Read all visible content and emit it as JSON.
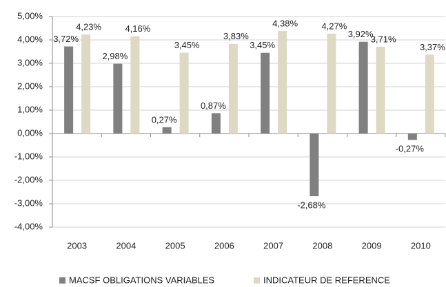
{
  "chart_data": {
    "type": "bar",
    "categories": [
      "2003",
      "2004",
      "2005",
      "2006",
      "2007",
      "2008",
      "2009",
      "2010"
    ],
    "series": [
      {
        "name": "MACSF OBLIGATIONS VARIABLES",
        "color": "#808080",
        "values": [
          3.72,
          2.98,
          0.27,
          0.87,
          3.45,
          -2.68,
          3.92,
          -0.27
        ],
        "value_labels": [
          "3,72%",
          "2,98%",
          "0,27%",
          "0,87%",
          "3,45%",
          "-2,68%",
          "3,92%",
          "-0,27%"
        ]
      },
      {
        "name": "INDICATEUR DE REFERENCE",
        "color": "#ddd9c3",
        "values": [
          4.23,
          4.16,
          3.45,
          3.83,
          4.38,
          4.27,
          3.71,
          3.37
        ],
        "value_labels": [
          "4,23%",
          "4,16%",
          "3,45%",
          "3,83%",
          "4,38%",
          "4,27%",
          "3,71%",
          "3,37%"
        ]
      }
    ],
    "ylim": [
      -4,
      5
    ],
    "yticks": [
      {
        "value": -4,
        "label": "-4,00%"
      },
      {
        "value": -3,
        "label": "-3,00%"
      },
      {
        "value": -2,
        "label": "-2,00%"
      },
      {
        "value": -1,
        "label": "-1,00%"
      },
      {
        "value": 0,
        "label": "0,00%"
      },
      {
        "value": 1,
        "label": "1,00%"
      },
      {
        "value": 2,
        "label": "2,00%"
      },
      {
        "value": 3,
        "label": "3,00%"
      },
      {
        "value": 4,
        "label": "4,00%"
      },
      {
        "value": 5,
        "label": "5,00%"
      }
    ],
    "grid": true,
    "legend": "bottom"
  }
}
